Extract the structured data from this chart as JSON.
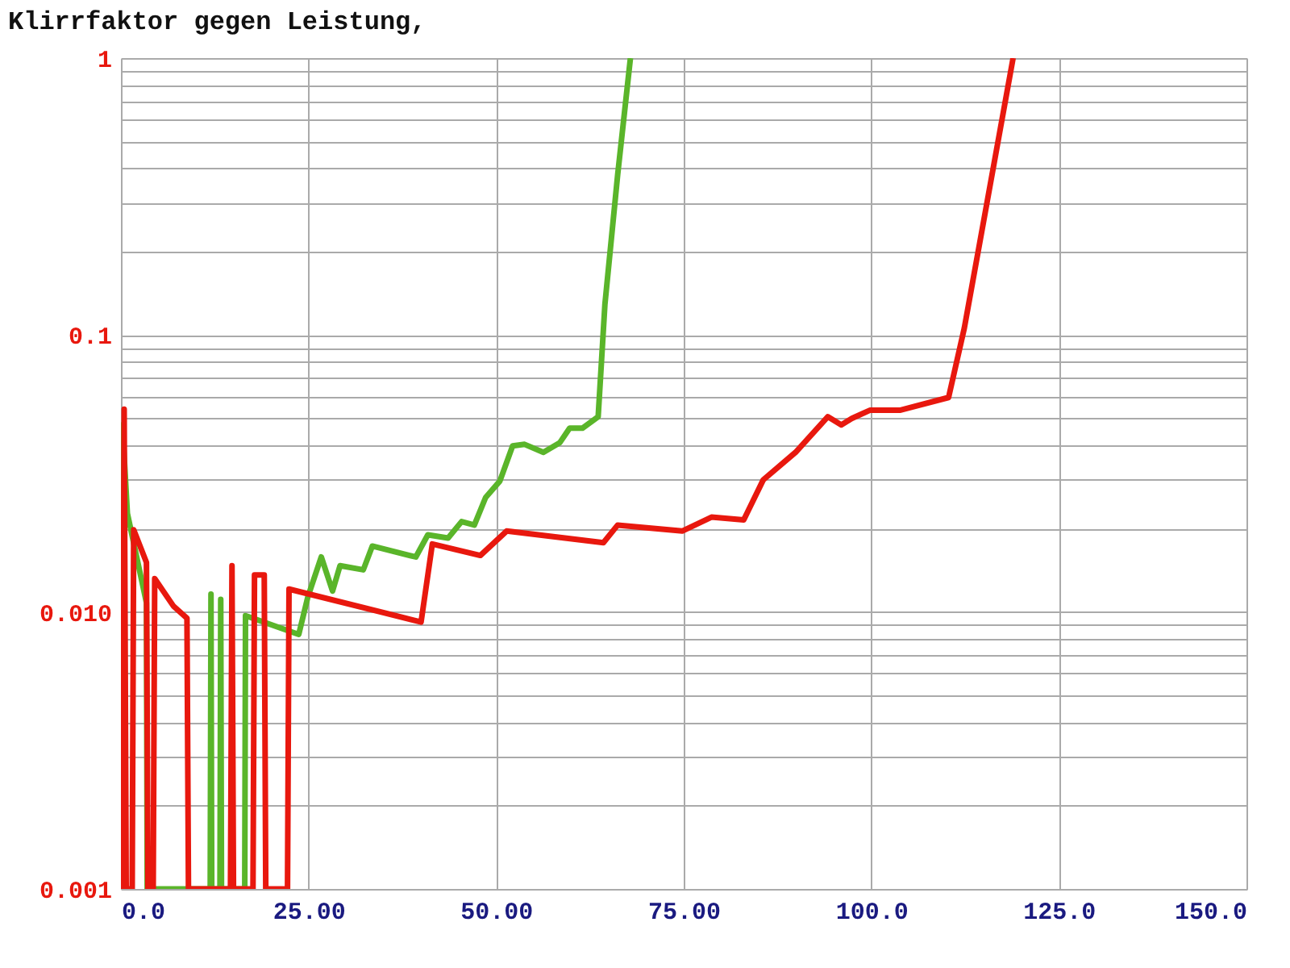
{
  "chart_data": {
    "type": "line",
    "title": "Klirrfaktor gegen Leistung,",
    "log": "y",
    "grid": true,
    "xlim": [
      0,
      150
    ],
    "xticks": [
      {
        "value": 0,
        "label": "0.0"
      },
      {
        "value": 25,
        "label": "25.00"
      },
      {
        "value": 50,
        "label": "50.00"
      },
      {
        "value": 75,
        "label": "75.00"
      },
      {
        "value": 100,
        "label": "100.0"
      },
      {
        "value": 125,
        "label": "125.0"
      },
      {
        "value": 150,
        "label": "150.0"
      }
    ],
    "ylim": [
      0.001,
      1
    ],
    "yticks": [
      {
        "value": 0.001,
        "label": "0.001"
      },
      {
        "value": 0.002,
        "label": null
      },
      {
        "value": 0.003,
        "label": null
      },
      {
        "value": 0.004,
        "label": null
      },
      {
        "value": 0.005,
        "label": null
      },
      {
        "value": 0.006,
        "label": null
      },
      {
        "value": 0.007,
        "label": null
      },
      {
        "value": 0.008,
        "label": null
      },
      {
        "value": 0.009,
        "label": null
      },
      {
        "value": 0.01,
        "label": "0.010"
      },
      {
        "value": 0.02,
        "label": null
      },
      {
        "value": 0.03,
        "label": null
      },
      {
        "value": 0.04,
        "label": null
      },
      {
        "value": 0.05,
        "label": null
      },
      {
        "value": 0.06,
        "label": null
      },
      {
        "value": 0.07,
        "label": null
      },
      {
        "value": 0.08,
        "label": null
      },
      {
        "value": 0.09,
        "label": null
      },
      {
        "value": 0.1,
        "label": "0.1"
      },
      {
        "value": 0.2,
        "label": null
      },
      {
        "value": 0.3,
        "label": null
      },
      {
        "value": 0.4,
        "label": null
      },
      {
        "value": 0.5,
        "label": null
      },
      {
        "value": 0.6,
        "label": null
      },
      {
        "value": 0.7,
        "label": null
      },
      {
        "value": 0.8,
        "label": null
      },
      {
        "value": 0.9,
        "label": null
      },
      {
        "value": 1,
        "label": "1"
      }
    ],
    "series": [
      {
        "color": "#5ab52a",
        "x": [
          0.0,
          0.2,
          0.86,
          3.4,
          3.5,
          11.9,
          12.0,
          12.1,
          13.2,
          13.3,
          13.4,
          16.5,
          16.6,
          23.7,
          24.9,
          26.7,
          28.2,
          29.2,
          32.3,
          33.5,
          39.3,
          40.9,
          43.6,
          45.4,
          47.1,
          48.6,
          50.5,
          52.2,
          53.8,
          56.3,
          58.5,
          59.8,
          61.5,
          63.6,
          64.5,
          66.2,
          67.9
        ],
        "values": [
          0.001,
          0.0474,
          0.0227,
          0.0108,
          0.001,
          0.001,
          0.0116,
          0.001,
          0.001,
          0.0111,
          0.001,
          0.001,
          0.0097,
          0.0083,
          0.0113,
          0.0158,
          0.0119,
          0.0147,
          0.0142,
          0.0173,
          0.0158,
          0.019,
          0.0185,
          0.0212,
          0.0206,
          0.0259,
          0.0297,
          0.0398,
          0.0403,
          0.0377,
          0.0409,
          0.0461,
          0.0461,
          0.0507,
          0.129,
          0.379,
          1.0
        ]
      },
      {
        "color": "#e8180e",
        "x": [
          0.2,
          0.43,
          0.7,
          1.5,
          1.7,
          3.4,
          3.6,
          4.3,
          4.5,
          7.0,
          8.8,
          9.0,
          14.6,
          14.8,
          15.0,
          17.6,
          17.8,
          19.1,
          19.3,
          22.2,
          22.4,
          40.0,
          41.5,
          47.9,
          51.4,
          64.3,
          66.2,
          74.8,
          78.7,
          83.0,
          85.6,
          89.9,
          94.2,
          96.0,
          97.4,
          99.8,
          103.8,
          110.3,
          112.4,
          118.9
        ],
        "values": [
          0.001,
          0.054,
          0.001,
          0.001,
          0.0198,
          0.0151,
          0.001,
          0.001,
          0.0132,
          0.0105,
          0.0095,
          0.001,
          0.001,
          0.0147,
          0.001,
          0.001,
          0.0136,
          0.0136,
          0.001,
          0.001,
          0.0121,
          0.0092,
          0.0176,
          0.016,
          0.0196,
          0.0178,
          0.0206,
          0.0196,
          0.022,
          0.0215,
          0.03,
          0.0377,
          0.0507,
          0.0474,
          0.05,
          0.0535,
          0.0535,
          0.0595,
          0.106,
          1.0
        ]
      }
    ]
  }
}
